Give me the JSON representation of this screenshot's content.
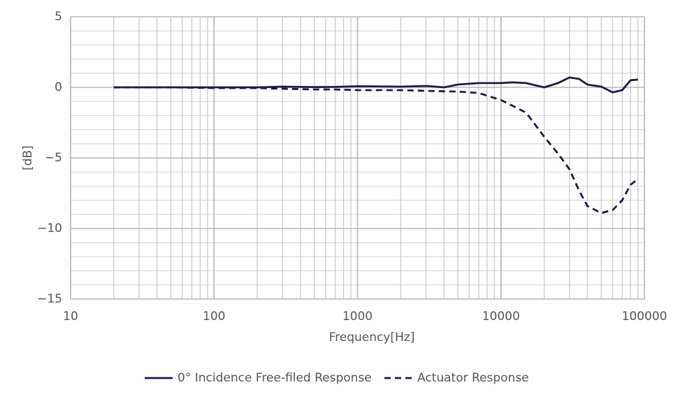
{
  "chart_data": {
    "type": "line",
    "xscale": "log",
    "grid": true,
    "minor_grid": true,
    "xlabel": "Frequency[Hz]",
    "ylabel": "[dB]",
    "x": [
      20,
      30,
      50,
      100,
      200,
      300,
      500,
      700,
      1000,
      2000,
      3000,
      4000,
      5000,
      7000,
      10000,
      12000,
      15000,
      20000,
      25000,
      30000,
      35000,
      40000,
      50000,
      60000,
      70000,
      80000,
      90000
    ],
    "series": [
      {
        "name": "0° Incidence Free-filed Response",
        "color": "#1d1a4a",
        "dash": "solid",
        "values": [
          0,
          0,
          0,
          0,
          0,
          0.05,
          0.02,
          0.03,
          0.08,
          0.05,
          0.1,
          0,
          0.2,
          0.3,
          0.3,
          0.35,
          0.3,
          0,
          0.3,
          0.7,
          0.6,
          0.2,
          0.05,
          -0.35,
          -0.2,
          0.5,
          0.55
        ]
      },
      {
        "name": "Actuator Response",
        "color": "#1d1a4a",
        "dash": "dashed",
        "values": [
          0,
          0,
          0,
          -0.05,
          -0.05,
          -0.1,
          -0.15,
          -0.15,
          -0.2,
          -0.2,
          -0.25,
          -0.28,
          -0.3,
          -0.4,
          -0.9,
          -1.3,
          -1.8,
          -3.5,
          -4.7,
          -5.8,
          -7.3,
          -8.4,
          -8.9,
          -8.7,
          -8.0,
          -6.9,
          -6.5
        ]
      }
    ],
    "xlim": [
      10,
      100000
    ],
    "xticks": [
      10,
      100,
      1000,
      10000,
      100000
    ],
    "ylim": [
      -15,
      5
    ],
    "yticks": [
      5,
      0,
      {
        "value": -5,
        "label": "−5"
      },
      {
        "value": -10,
        "label": "−10"
      },
      {
        "value": -15,
        "label": "−15"
      }
    ],
    "legend": "bottom"
  }
}
